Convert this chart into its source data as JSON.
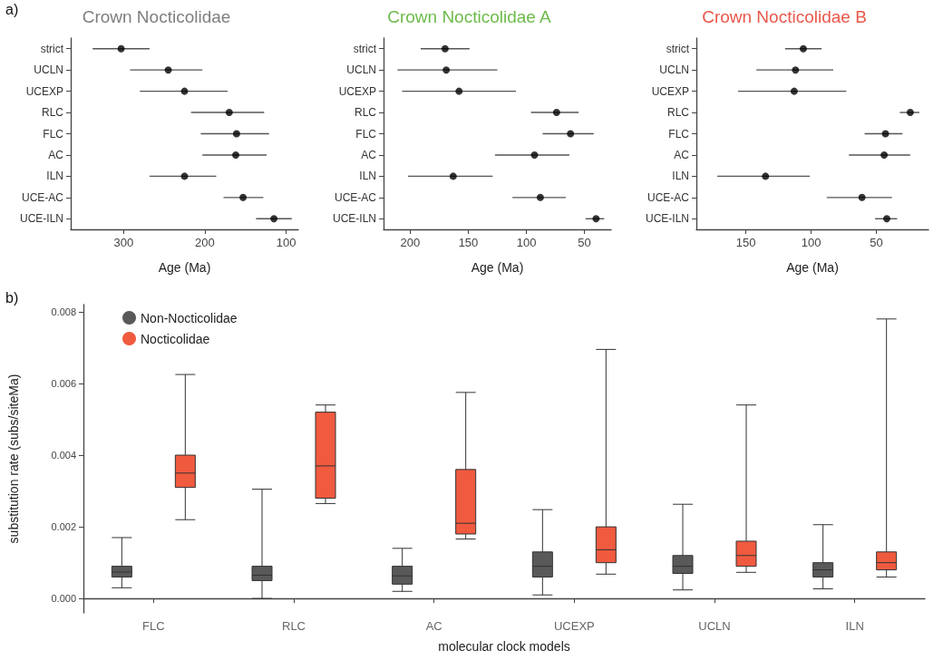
{
  "chart_data": [
    {
      "type": "scatter",
      "orientation": "horizontal",
      "title": "Crown Nocticolidae",
      "xlabel": "Age (Ma)",
      "annotations": [
        "a)"
      ],
      "categories": [
        "strict",
        "UCLN",
        "UCEXP",
        "RLC",
        "FLC",
        "AC",
        "ILN",
        "UCE-AC",
        "UCE-ILN"
      ],
      "values": [
        303,
        245,
        225,
        170,
        161,
        162,
        225,
        153,
        115
      ],
      "errors": [
        [
          268,
          338
        ],
        [
          203,
          292
        ],
        [
          172,
          280
        ],
        [
          127,
          217
        ],
        [
          121,
          205
        ],
        [
          124,
          203
        ],
        [
          186,
          268
        ],
        [
          128,
          177
        ],
        [
          93,
          137
        ]
      ],
      "color": "#000000",
      "marker": "circle",
      "grid": false,
      "legend": false,
      "xlim": [
        365,
        85
      ],
      "xticks": [
        300,
        200,
        100
      ]
    },
    {
      "type": "scatter",
      "orientation": "horizontal",
      "title": "Crown Nocticolidae A",
      "xlabel": "Age (Ma)",
      "categories": [
        "strict",
        "UCLN",
        "UCEXP",
        "RLC",
        "FLC",
        "AC",
        "ILN",
        "UCE-AC",
        "UCE-ILN"
      ],
      "values": [
        170,
        169,
        158,
        74,
        62,
        93,
        163,
        88,
        40
      ],
      "errors": [
        [
          149,
          191
        ],
        [
          125,
          211
        ],
        [
          109,
          207
        ],
        [
          55,
          96
        ],
        [
          42,
          86
        ],
        [
          63,
          127
        ],
        [
          129,
          202
        ],
        [
          66,
          112
        ],
        [
          33,
          49
        ]
      ],
      "color": "#000000",
      "marker": "circle",
      "grid": false,
      "legend": false,
      "xlim": [
        223,
        27
      ],
      "xticks": [
        200,
        150,
        100,
        50
      ]
    },
    {
      "type": "scatter",
      "orientation": "horizontal",
      "title": "Crown Nocticolidae B",
      "xlabel": "Age (Ma)",
      "categories": [
        "strict",
        "UCLN",
        "UCEXP",
        "RLC",
        "FLC",
        "AC",
        "ILN",
        "UCE-AC",
        "UCE-ILN"
      ],
      "values": [
        106,
        112,
        113,
        24,
        43,
        44,
        135,
        61,
        42
      ],
      "errors": [
        [
          92,
          120
        ],
        [
          83,
          142
        ],
        [
          73,
          156
        ],
        [
          17,
          32
        ],
        [
          30,
          59
        ],
        [
          24,
          71
        ],
        [
          101,
          172
        ],
        [
          38,
          88
        ],
        [
          34,
          51
        ]
      ],
      "color": "#000000",
      "marker": "circle",
      "grid": false,
      "legend": false,
      "xlim": [
        188,
        10
      ],
      "xticks": [
        150,
        100,
        50
      ]
    },
    {
      "type": "box",
      "xlabel": "molecular clock models",
      "ylabel": "substitution rate (subs/siteMa)",
      "annotations": [
        "b)"
      ],
      "categories": [
        "FLC",
        "RLC",
        "AC",
        "UCEXP",
        "UCLN",
        "ILN"
      ],
      "series": [
        {
          "name": "Non-Nocticolidae",
          "color": "#595959",
          "boxes": [
            {
              "low": 0.0003,
              "q1": 0.0006,
              "median": 0.00074,
              "q3": 0.0009,
              "high": 0.0017
            },
            {
              "low": 0.0,
              "q1": 0.0005,
              "median": 0.00065,
              "q3": 0.0009,
              "high": 0.00305
            },
            {
              "low": 0.0002,
              "q1": 0.0004,
              "median": 0.00063,
              "q3": 0.0009,
              "high": 0.0014
            },
            {
              "low": 0.0001,
              "q1": 0.0006,
              "median": 0.0009,
              "q3": 0.0013,
              "high": 0.00248
            },
            {
              "low": 0.00024,
              "q1": 0.0007,
              "median": 0.0009,
              "q3": 0.0012,
              "high": 0.00263
            },
            {
              "low": 0.00027,
              "q1": 0.0006,
              "median": 0.0008,
              "q3": 0.001,
              "high": 0.00206
            }
          ]
        },
        {
          "name": "Nocticolidae",
          "color": "#f05a3f",
          "boxes": [
            {
              "low": 0.0022,
              "q1": 0.0031,
              "median": 0.0035,
              "q3": 0.004,
              "high": 0.00625
            },
            {
              "low": 0.00265,
              "q1": 0.0028,
              "median": 0.0037,
              "q3": 0.0052,
              "high": 0.0054
            },
            {
              "low": 0.00166,
              "q1": 0.0018,
              "median": 0.0021,
              "q3": 0.0036,
              "high": 0.00575
            },
            {
              "low": 0.00068,
              "q1": 0.001,
              "median": 0.00136,
              "q3": 0.002,
              "high": 0.00695
            },
            {
              "low": 0.00073,
              "q1": 0.0009,
              "median": 0.0012,
              "q3": 0.0016,
              "high": 0.0054
            },
            {
              "low": 0.0006,
              "q1": 0.0008,
              "median": 0.001,
              "q3": 0.0013,
              "high": 0.0078
            }
          ]
        }
      ],
      "grid": false,
      "legend": "top left",
      "ylim": [
        -0.0004,
        0.0082
      ],
      "yticks": [
        {
          "value": 0,
          "label": "0.000"
        },
        {
          "value": 0.002,
          "label": "0.002"
        },
        {
          "value": 0.004,
          "label": "0.004"
        },
        {
          "value": 0.006,
          "label": "0.006"
        },
        {
          "value": 0.008,
          "label": "0.008"
        }
      ]
    }
  ]
}
